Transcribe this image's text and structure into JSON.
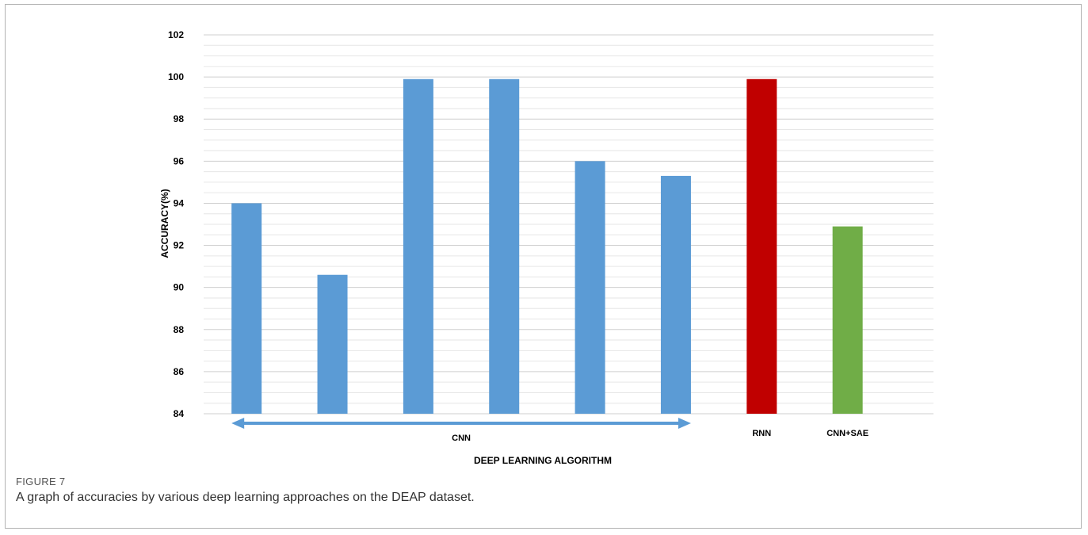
{
  "figure": {
    "label": "FIGURE 7",
    "caption": "A graph of accuracies by various deep learning approaches on the DEAP dataset."
  },
  "chart_data": {
    "type": "bar",
    "title": "",
    "xlabel": "DEEP LEARNING ALGORITHM",
    "ylabel": "ACCURACY(%)",
    "ylim": [
      84,
      102
    ],
    "yticks": [
      84,
      86,
      88,
      90,
      92,
      94,
      96,
      98,
      100,
      102
    ],
    "grid": true,
    "legend": "none",
    "values": [
      94.0,
      90.6,
      99.9,
      99.9,
      96.0,
      95.3,
      99.9,
      92.9
    ],
    "bar_groups": [
      "CNN",
      "CNN",
      "CNN",
      "CNN",
      "CNN",
      "CNN",
      "RNN",
      "CNN+SAE"
    ],
    "bar_colors": [
      "#5b9bd5",
      "#5b9bd5",
      "#5b9bd5",
      "#5b9bd5",
      "#5b9bd5",
      "#5b9bd5",
      "#c00000",
      "#70ad47"
    ],
    "group_labels": [
      "CNN",
      "RNN",
      "CNN+SAE"
    ],
    "annotations": [
      {
        "type": "double-arrow",
        "group": "CNN",
        "color": "#5b9bd5"
      }
    ]
  }
}
